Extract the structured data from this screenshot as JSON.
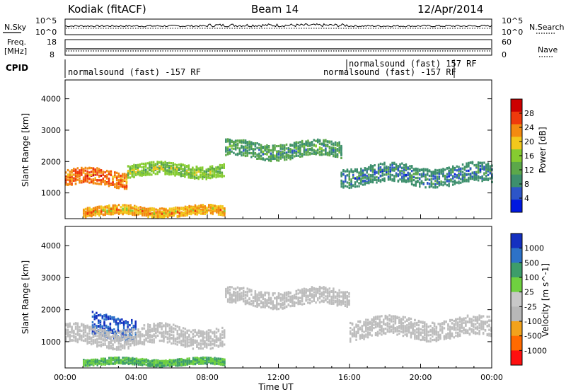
{
  "header": {
    "station": "Kodiak (fitACF)",
    "beam": "Beam 14",
    "date": "12/Apr/2014"
  },
  "strip_labels": {
    "nsky": "N.Sky",
    "nsearch": "N.Search",
    "freq_line1": "Freq.",
    "freq_line2": "[MHz]",
    "nave": "Nave",
    "cpid": "CPID"
  },
  "strip_ticks": {
    "noise_top_left": "10^5",
    "noise_bottom_left": "10^0",
    "noise_top_right": "10^5",
    "noise_bottom_right": "10^0",
    "freq_top": "18",
    "freq_bottom": "8",
    "nave_top": "60",
    "nave_bottom": "0"
  },
  "cpid_labels": [
    "normalsound (fast) -157 RF",
    "normalsound (fast) 157 RF",
    "normalsound (fast) -157 RF"
  ],
  "colors": {
    "power": [
      "#0018e0",
      "#2d55c8",
      "#3d8f6d",
      "#5ca84a",
      "#86cc30",
      "#f2c81c",
      "#f38a10",
      "#ef3a0c",
      "#cc0000"
    ],
    "velocity": [
      "#ff1010",
      "#ff6a00",
      "#f2a21c",
      "#b8b8b8",
      "#c8c8c8",
      "#6fd040",
      "#3d9d6a",
      "#2d72c8",
      "#1430c0"
    ],
    "ground_scatter": "#bdbdbd"
  },
  "chart_data": [
    {
      "type": "heatmap",
      "panel": "power",
      "ylabel": "Slant Range [km]",
      "ylim": [
        180,
        4600
      ],
      "yticks": [
        "1000",
        "2000",
        "3000",
        "4000"
      ],
      "xlim": [
        "00:00",
        "24:00"
      ],
      "colorbar_label": "Power [dB]",
      "colorbar_ticks": [
        "4",
        "8",
        "12",
        "16",
        "20",
        "24",
        "28"
      ],
      "colorbar_range": [
        0,
        30
      ],
      "bands": [
        {
          "x": [
            0,
            3.5
          ],
          "y_center": 1500,
          "y_halfwidth": 250,
          "level": 23
        },
        {
          "x": [
            3.5,
            9
          ],
          "y_center": 1750,
          "y_halfwidth": 200,
          "level": 14
        },
        {
          "x": [
            9,
            15.5
          ],
          "y_center": 2400,
          "y_halfwidth": 250,
          "level": 10
        },
        {
          "x": [
            15.5,
            24
          ],
          "y_center": 1600,
          "y_halfwidth": 300,
          "level": 8
        },
        {
          "x": [
            1,
            9
          ],
          "y_center": 450,
          "y_halfwidth": 150,
          "level": 20
        }
      ]
    },
    {
      "type": "heatmap",
      "panel": "velocity",
      "ylabel": "Slant Range [km]",
      "ylim": [
        180,
        4600
      ],
      "yticks": [
        "1000",
        "2000",
        "3000",
        "4000"
      ],
      "xlim": [
        "00:00",
        "24:00"
      ],
      "xlabel": "Time UT",
      "xticks": [
        "00:00",
        "04:00",
        "08:00",
        "12:00",
        "16:00",
        "20:00",
        "00:00"
      ],
      "colorbar_label": "Velocity [m s^-1]",
      "colorbar_ticks": [
        "1000",
        "500",
        "100",
        "25",
        "-25",
        "-100",
        "-500",
        "-1000"
      ],
      "bands": [
        {
          "x": [
            1.5,
            4
          ],
          "y_center": 1500,
          "y_halfwidth": 350,
          "value": 1000
        },
        {
          "x": [
            0,
            9
          ],
          "y_center": 1200,
          "y_halfwidth": 300,
          "value": 0
        },
        {
          "x": [
            9,
            16
          ],
          "y_center": 2400,
          "y_halfwidth": 250,
          "value": 0
        },
        {
          "x": [
            16,
            24
          ],
          "y_center": 1450,
          "y_halfwidth": 300,
          "value": 0
        },
        {
          "x": [
            1,
            9
          ],
          "y_center": 400,
          "y_halfwidth": 100,
          "value": 100
        }
      ]
    }
  ]
}
